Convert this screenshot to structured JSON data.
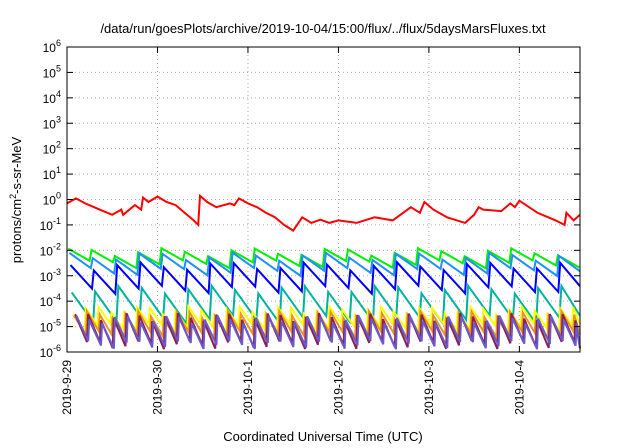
{
  "chart_data": {
    "type": "line",
    "title": "/data/run/goesPlots/archive/2019-10-04/15:00/flux/../flux/5daysMarsFluxes.txt",
    "xlabel": "Coordinated Universal Time (UTC)",
    "ylabel": {
      "prefix": "protons/cm",
      "sup": "2",
      "suffix": "-s-sr-MeV"
    },
    "y_scale": "log",
    "ylim": [
      1e-06,
      1000000.0
    ],
    "y_ticks": [
      {
        "base": "10",
        "exp": "6"
      },
      {
        "base": "10",
        "exp": "5"
      },
      {
        "base": "10",
        "exp": "4"
      },
      {
        "base": "10",
        "exp": "3"
      },
      {
        "base": "10",
        "exp": "2"
      },
      {
        "base": "10",
        "exp": "1"
      },
      {
        "base": "10",
        "exp": "0"
      },
      {
        "base": "10",
        "exp": "-1"
      },
      {
        "base": "10",
        "exp": "-2"
      },
      {
        "base": "10",
        "exp": "-3"
      },
      {
        "base": "10",
        "exp": "-4"
      },
      {
        "base": "10",
        "exp": "-5"
      },
      {
        "base": "10",
        "exp": "-6"
      }
    ],
    "x_ticks": [
      "2019-9-29",
      "2019-9-30",
      "2019-10-1",
      "2019-10-2",
      "2019-10-3",
      "2019-10-4"
    ],
    "xlim_days": [
      0,
      5.67
    ],
    "grid": true,
    "legend": "none",
    "series": [
      {
        "color": "#ff0000",
        "x": [
          0,
          0.1,
          0.2,
          0.3,
          0.4,
          0.5,
          0.6,
          0.62,
          0.75,
          0.82,
          0.84,
          0.9,
          1.0,
          1.1,
          1.2,
          1.3,
          1.4,
          1.45,
          1.47,
          1.55,
          1.65,
          1.8,
          1.85,
          1.9,
          2.0,
          2.1,
          2.2,
          2.3,
          2.4,
          2.5,
          2.6,
          2.7,
          2.8,
          2.9,
          3.0,
          3.2,
          3.4,
          3.6,
          3.8,
          3.9,
          3.95,
          4.05,
          4.2,
          4.4,
          4.5,
          4.55,
          4.6,
          4.8,
          4.9,
          4.95,
          5.0,
          5.2,
          5.4,
          5.5,
          5.52,
          5.6,
          5.67
        ],
        "y": [
          0.7,
          1.1,
          0.7,
          0.5,
          0.35,
          0.25,
          0.4,
          0.25,
          0.6,
          0.4,
          1.2,
          0.8,
          1.3,
          0.8,
          0.6,
          0.3,
          0.15,
          0.1,
          1.4,
          0.8,
          0.5,
          0.7,
          0.6,
          1.1,
          0.7,
          0.5,
          0.3,
          0.2,
          0.1,
          0.06,
          0.2,
          0.12,
          0.16,
          0.12,
          0.15,
          0.12,
          0.2,
          0.15,
          0.5,
          0.3,
          0.8,
          0.4,
          0.2,
          0.12,
          0.25,
          0.5,
          0.4,
          0.35,
          0.7,
          0.5,
          0.9,
          0.3,
          0.15,
          0.1,
          0.3,
          0.15,
          0.25
        ]
      },
      {
        "color": "#00ee00",
        "base": 0.003,
        "peak": 0.009,
        "teeth": 22
      },
      {
        "color": "#1e90ff",
        "base": 0.0015,
        "peak": 0.006,
        "teeth": 22
      },
      {
        "color": "#0000ff",
        "base": 0.0003,
        "peak": 0.0025,
        "teeth": 22
      },
      {
        "color": "#00b39f",
        "base": 2e-05,
        "peak": 0.0003,
        "teeth": 22
      },
      {
        "color": "#ffff00",
        "base": 1e-05,
        "peak": 4.5e-05,
        "teeth": 40
      },
      {
        "color": "#e8922a",
        "base": 5e-06,
        "peak": 3e-05,
        "teeth": 40
      },
      {
        "color": "#8b2252",
        "base": 2e-06,
        "peak": 2.5e-05,
        "teeth": 40
      },
      {
        "color": "#6a5acd",
        "base": 2e-06,
        "peak": 2e-05,
        "teeth": 40
      }
    ]
  }
}
